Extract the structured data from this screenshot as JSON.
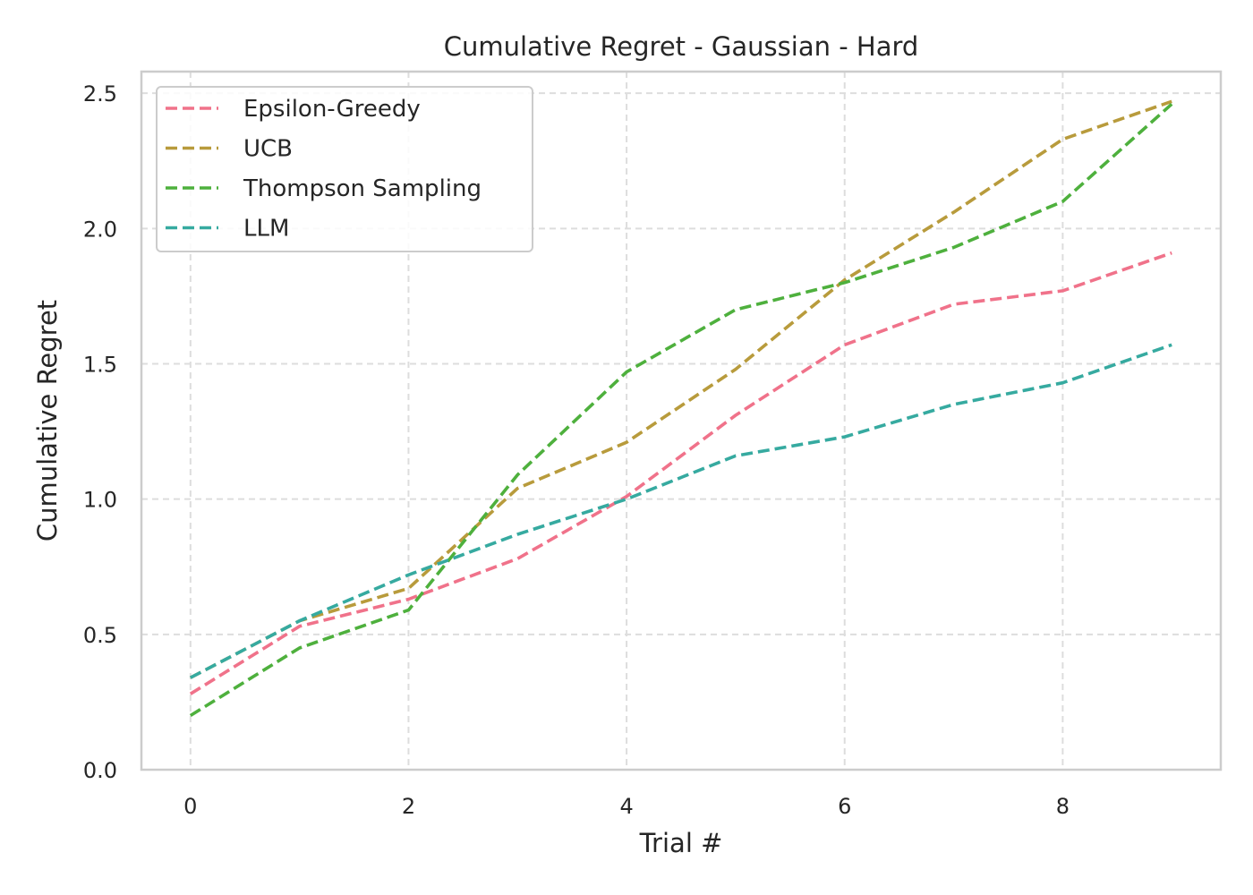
{
  "chart_data": {
    "type": "line",
    "title": "Cumulative Regret - Gaussian - Hard",
    "xlabel": "Trial #",
    "ylabel": "Cumulative Regret",
    "x": [
      0,
      1,
      2,
      3,
      4,
      5,
      6,
      7,
      8,
      9
    ],
    "xlim": [
      -0.45,
      9.45
    ],
    "ylim": [
      0,
      2.58
    ],
    "xticks": [
      0,
      2,
      4,
      6,
      8
    ],
    "yticks": [
      0.0,
      0.5,
      1.0,
      1.5,
      2.0,
      2.5
    ],
    "xtick_labels": [
      "0",
      "2",
      "4",
      "6",
      "8"
    ],
    "ytick_labels": [
      "0.0",
      "0.5",
      "1.0",
      "1.5",
      "2.0",
      "2.5"
    ],
    "grid": true,
    "line_style": "dashed",
    "legend_position": "top-left",
    "series": [
      {
        "name": "Epsilon-Greedy",
        "color": "#f0728a",
        "values": [
          0.28,
          0.53,
          0.63,
          0.78,
          1.01,
          1.31,
          1.57,
          1.72,
          1.77,
          1.91
        ]
      },
      {
        "name": "UCB",
        "color": "#b89b3c",
        "values": [
          0.34,
          0.55,
          0.67,
          1.04,
          1.21,
          1.48,
          1.81,
          2.06,
          2.33,
          2.47
        ]
      },
      {
        "name": "Thompson Sampling",
        "color": "#4eb03d",
        "values": [
          0.2,
          0.45,
          0.59,
          1.09,
          1.47,
          1.7,
          1.8,
          1.93,
          2.1,
          2.46
        ]
      },
      {
        "name": "LLM",
        "color": "#36aaa0",
        "values": [
          0.34,
          0.55,
          0.72,
          0.87,
          1.0,
          1.16,
          1.23,
          1.35,
          1.43,
          1.57
        ]
      }
    ]
  }
}
